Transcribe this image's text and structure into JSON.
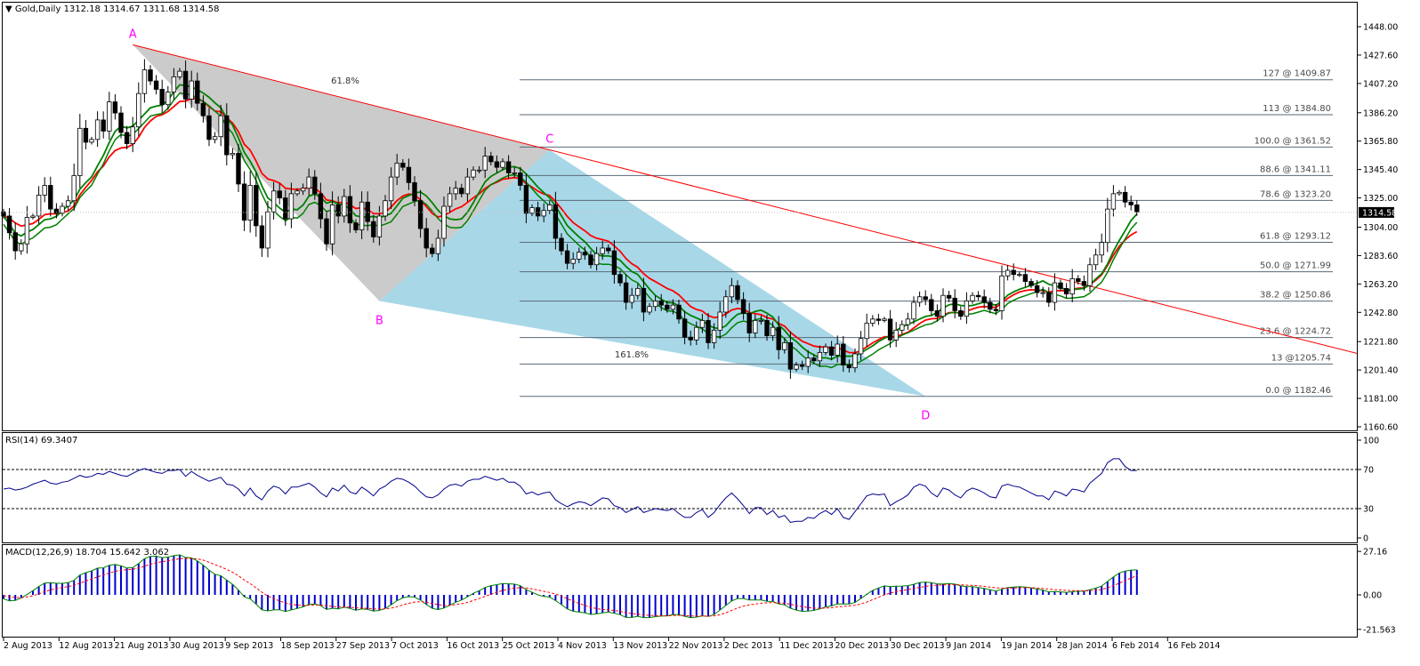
{
  "main_header": {
    "symbol": "Gold,Daily",
    "ohlc": "1312.18 1314.67 1311.68 1314.58"
  },
  "rsi_header": "RSI(14) 69.3407",
  "macd_header": "MACD(12,26,9) 18.704 15.642 3.062",
  "colors": {
    "bull_body": "#ffffff",
    "bear_body": "#000000",
    "ma_red": "#ff0000",
    "ma_green": "#008000",
    "ma_yellow": "#ffff00",
    "trendline": "#ff0000",
    "triangle_gray": "#c8c8c8",
    "triangle_blue": "#a8d8e8",
    "fib_line": "#5a6a78",
    "pattern_label": "#ff00ff",
    "rsi_line": "#00008b",
    "macd_signal": "#ff0000",
    "macd_hist": "#0000cd",
    "macd_line": "#008000"
  },
  "chart_data": [
    {
      "type": "candlestick",
      "title": "Gold,Daily",
      "ylim": [
        1160.6,
        1457.0
      ],
      "y_ticks": [
        "1448.00",
        "1427.60",
        "1407.20",
        "1386.20",
        "1365.80",
        "1345.40",
        "1325.00",
        "1304.00",
        "1283.60",
        "1263.20",
        "1242.80",
        "1221.80",
        "1201.40",
        "1181.00",
        "1160.60"
      ],
      "x_ticks": [
        "2 Aug 2013",
        "12 Aug 2013",
        "21 Aug 2013",
        "30 Aug 2013",
        "9 Sep 2013",
        "18 Sep 2013",
        "27 Sep 2013",
        "7 Oct 2013",
        "16 Oct 2013",
        "25 Oct 2013",
        "4 Nov 2013",
        "13 Nov 2013",
        "22 Nov 2013",
        "2 Dec 2013",
        "11 Dec 2013",
        "20 Dec 2013",
        "30 Dec 2013",
        "9 Jan 2014",
        "19 Jan 2014",
        "28 Jan 2014",
        "6 Feb 2014",
        "16 Feb 2014"
      ],
      "current_price": "1314.58",
      "closes": [
        1312,
        1300,
        1287,
        1292,
        1311,
        1312,
        1327,
        1334,
        1317,
        1314,
        1319,
        1323,
        1341,
        1375,
        1365,
        1367,
        1381,
        1373,
        1394,
        1386,
        1372,
        1364,
        1376,
        1400,
        1417,
        1409,
        1403,
        1392,
        1401,
        1412,
        1416,
        1396,
        1409,
        1393,
        1384,
        1367,
        1369,
        1384,
        1356,
        1357,
        1335,
        1309,
        1334,
        1305,
        1289,
        1315,
        1330,
        1325,
        1310,
        1328,
        1330,
        1332,
        1340,
        1328,
        1310,
        1292,
        1320,
        1312,
        1326,
        1307,
        1302,
        1322,
        1308,
        1297,
        1312,
        1323,
        1340,
        1350,
        1347,
        1336,
        1323,
        1303,
        1289,
        1285,
        1296,
        1319,
        1328,
        1332,
        1328,
        1340,
        1345,
        1345,
        1355,
        1351,
        1347,
        1351,
        1343,
        1343,
        1334,
        1314,
        1318,
        1312,
        1316,
        1320,
        1296,
        1287,
        1278,
        1281,
        1286,
        1284,
        1277,
        1285,
        1289,
        1287,
        1270,
        1264,
        1250,
        1255,
        1260,
        1243,
        1247,
        1251,
        1248,
        1245,
        1248,
        1238,
        1225,
        1223,
        1232,
        1237,
        1221,
        1230,
        1243,
        1254,
        1262,
        1252,
        1242,
        1228,
        1237,
        1237,
        1226,
        1232,
        1216,
        1221,
        1202,
        1205,
        1204,
        1210,
        1208,
        1214,
        1218,
        1212,
        1220,
        1205,
        1203,
        1213,
        1224,
        1235,
        1238,
        1237,
        1238,
        1223,
        1230,
        1234,
        1238,
        1250,
        1254,
        1252,
        1244,
        1240,
        1255,
        1253,
        1244,
        1240,
        1251,
        1255,
        1254,
        1250,
        1245,
        1244,
        1269,
        1273,
        1270,
        1270,
        1265,
        1262,
        1257,
        1257,
        1250,
        1264,
        1260,
        1256,
        1267,
        1265,
        1262,
        1277,
        1284,
        1293,
        1317,
        1328,
        1329,
        1322,
        1320,
        1315
      ]
    },
    {
      "type": "line",
      "title": "RSI(14) 69.3407",
      "ylim": [
        0,
        100
      ],
      "y_ticks": [
        "100",
        "70",
        "30",
        "0"
      ],
      "levels": [
        70,
        30
      ],
      "values": [
        50,
        51,
        49,
        50,
        52,
        55,
        57,
        59,
        56,
        55,
        57,
        58,
        61,
        64,
        62,
        63,
        66,
        65,
        68,
        66,
        64,
        63,
        66,
        69,
        71,
        69,
        67,
        66,
        69,
        69,
        70,
        63,
        68,
        64,
        61,
        58,
        60,
        62,
        55,
        54,
        50,
        43,
        51,
        43,
        39,
        48,
        53,
        51,
        45,
        52,
        52,
        54,
        56,
        52,
        46,
        42,
        51,
        48,
        54,
        47,
        45,
        52,
        48,
        43,
        50,
        53,
        58,
        61,
        60,
        57,
        53,
        47,
        42,
        41,
        44,
        50,
        54,
        55,
        53,
        58,
        60,
        60,
        63,
        61,
        59,
        61,
        57,
        57,
        53,
        45,
        47,
        44,
        46,
        47,
        39,
        35,
        32,
        35,
        37,
        36,
        33,
        37,
        41,
        40,
        33,
        31,
        26,
        29,
        32,
        26,
        28,
        30,
        29,
        28,
        30,
        25,
        21,
        21,
        26,
        29,
        21,
        26,
        34,
        41,
        46,
        40,
        33,
        25,
        31,
        31,
        24,
        28,
        21,
        23,
        16,
        17,
        17,
        21,
        20,
        25,
        28,
        24,
        30,
        21,
        19,
        27,
        35,
        43,
        45,
        44,
        45,
        33,
        37,
        40,
        44,
        52,
        55,
        53,
        46,
        42,
        51,
        49,
        44,
        41,
        48,
        51,
        49,
        46,
        42,
        41,
        53,
        55,
        53,
        52,
        49,
        46,
        43,
        43,
        39,
        48,
        46,
        43,
        50,
        49,
        47,
        56,
        61,
        66,
        77,
        81,
        81,
        73,
        69,
        69
      ]
    },
    {
      "type": "bar",
      "title": "MACD(12,26,9) 18.704 15.642 3.062",
      "ylim": [
        -24.0,
        30.0
      ],
      "y_ticks": [
        "27.16",
        "0.00",
        "-21.563"
      ],
      "series": [
        {
          "values": [
            -2.5,
            -3.8,
            -3.5,
            -2.0,
            0.2,
            2.6,
            5.2,
            7.4,
            7.6,
            7.2,
            7.2,
            7.6,
            9.1,
            12.4,
            13.9,
            15.0,
            16.7,
            16.9,
            18.5,
            19.0,
            18.1,
            16.8,
            17.0,
            19.6,
            22.6,
            24.0,
            24.2,
            23.3,
            23.6,
            24.5,
            25.0,
            23.4,
            23.1,
            21.2,
            18.6,
            15.4,
            12.9,
            12.0,
            9.3,
            6.6,
            3.0,
            -1.2,
            -2.5,
            -5.8,
            -9.4,
            -10.0,
            -9.4,
            -9.3,
            -10.4,
            -9.4,
            -8.5,
            -7.5,
            -6.0,
            -5.7,
            -6.8,
            -9.1,
            -8.4,
            -8.7,
            -7.7,
            -8.5,
            -9.6,
            -8.8,
            -9.1,
            -10.1,
            -9.7,
            -8.5,
            -6.2,
            -3.6,
            -1.9,
            -1.1,
            -1.4,
            -3.3,
            -6.0,
            -8.4,
            -9.2,
            -8.2,
            -6.5,
            -4.6,
            -3.2,
            -1.2,
            1.0,
            2.6,
            4.6,
            5.8,
            6.4,
            7.1,
            6.9,
            6.7,
            5.7,
            3.3,
            1.6,
            -0.0,
            -1.0,
            -1.4,
            -3.6,
            -6.0,
            -8.8,
            -10.2,
            -10.8,
            -11.3,
            -12.2,
            -11.9,
            -11.2,
            -10.7,
            -11.5,
            -12.4,
            -14.1,
            -14.1,
            -13.4,
            -14.2,
            -14.2,
            -13.6,
            -13.3,
            -13.1,
            -12.3,
            -12.4,
            -13.4,
            -14.2,
            -13.9,
            -13.1,
            -13.5,
            -12.3,
            -9.5,
            -6.6,
            -3.8,
            -2.3,
            -2.3,
            -3.2,
            -3.2,
            -3.2,
            -4.0,
            -4.1,
            -5.6,
            -6.3,
            -8.4,
            -9.5,
            -10.3,
            -10.1,
            -9.7,
            -8.8,
            -7.5,
            -6.9,
            -5.6,
            -5.7,
            -5.7,
            -4.7,
            -2.3,
            0.4,
            2.8,
            4.3,
            5.6,
            5.2,
            5.4,
            5.5,
            5.8,
            6.6,
            7.7,
            8.0,
            7.6,
            6.8,
            6.8,
            7.1,
            6.7,
            5.6,
            5.2,
            5.1,
            4.6,
            4.0,
            3.2,
            2.4,
            3.5,
            4.6,
            4.9,
            5.1,
            4.9,
            4.4,
            3.6,
            3.0,
            1.9,
            2.1,
            1.9,
            1.5,
            2.0,
            2.3,
            2.3,
            3.2,
            4.2,
            5.5,
            8.4,
            11.2,
            13.6,
            14.9,
            15.5,
            15.6
          ]
        },
        {
          "values": [
            -0.5,
            -1.1,
            -1.6,
            -1.7,
            -1.3,
            -0.5,
            0.6,
            2.0,
            3.1,
            3.9,
            4.6,
            5.2,
            6.0,
            7.3,
            8.6,
            9.9,
            11.2,
            12.4,
            13.6,
            14.7,
            15.4,
            15.7,
            16.0,
            16.7,
            17.9,
            19.1,
            20.1,
            20.7,
            21.3,
            22.0,
            22.6,
            22.8,
            22.8,
            22.5,
            21.7,
            20.4,
            18.9,
            17.5,
            15.9,
            14.1,
            11.9,
            9.3,
            7.0,
            4.4,
            1.6,
            -0.7,
            -2.4,
            -3.8,
            -5.1,
            -5.9,
            -6.4,
            -6.6,
            -6.5,
            -6.3,
            -6.4,
            -6.9,
            -7.2,
            -7.5,
            -7.5,
            -7.7,
            -8.1,
            -8.2,
            -8.4,
            -8.7,
            -8.9,
            -8.8,
            -8.3,
            -7.4,
            -6.3,
            -5.3,
            -4.5,
            -4.3,
            -4.6,
            -5.4,
            -6.1,
            -6.5,
            -6.5,
            -6.1,
            -5.5,
            -4.7,
            -3.5,
            -2.3,
            -0.9,
            0.4,
            1.6,
            2.7,
            3.6,
            4.2,
            4.5,
            4.3,
            3.8,
            3.0,
            2.2,
            1.5,
            0.5,
            -0.8,
            -2.4,
            -4.0,
            -5.4,
            -6.6,
            -7.7,
            -8.6,
            -9.1,
            -9.4,
            -9.8,
            -10.3,
            -11.1,
            -11.7,
            -12.0,
            -12.5,
            -12.8,
            -13.0,
            -13.0,
            -13.1,
            -12.9,
            -12.8,
            -12.9,
            -13.1,
            -13.3,
            -13.2,
            -13.3,
            -13.1,
            -12.4,
            -11.2,
            -9.7,
            -8.2,
            -7.0,
            -6.3,
            -5.7,
            -5.2,
            -5.0,
            -4.8,
            -5.0,
            -5.3,
            -5.9,
            -6.6,
            -7.4,
            -7.9,
            -8.3,
            -8.4,
            -8.2,
            -8.0,
            -7.5,
            -7.2,
            -6.9,
            -6.5,
            -5.7,
            -4.5,
            -3.0,
            -1.5,
            0.0,
            1.1,
            2.0,
            2.7,
            3.3,
            4.0,
            4.7,
            5.3,
            5.8,
            6.0,
            6.2,
            6.3,
            6.4,
            6.3,
            6.1,
            5.9,
            5.7,
            5.3,
            4.9,
            4.4,
            4.2,
            4.2,
            4.3,
            4.4,
            4.5,
            4.5,
            4.3,
            4.0,
            3.6,
            3.3,
            3.1,
            2.8,
            2.7,
            2.6,
            2.5,
            2.6,
            2.9,
            3.4,
            4.4,
            5.8,
            7.3,
            8.9,
            10.5,
            12.1
          ]
        }
      ]
    }
  ],
  "pattern": {
    "points": [
      {
        "label": "A",
        "x_index": 22,
        "price": 1435.0
      },
      {
        "label": "B",
        "x_index": 64,
        "price": 1251.0
      },
      {
        "label": "C",
        "x_index": 93,
        "price": 1359.5
      },
      {
        "label": "D",
        "x_index": 157,
        "price": 1182.5
      }
    ],
    "ab_ratio_label": "61.8%",
    "cd_ratio_label": "161.8%"
  },
  "fib_levels": [
    {
      "label": "127 @ 1409.87",
      "price": 1409.87
    },
    {
      "label": "113 @ 1384.80",
      "price": 1384.8
    },
    {
      "label": "100.0 @ 1361.52",
      "price": 1361.52
    },
    {
      "label": "88.6 @ 1341.11",
      "price": 1341.11
    },
    {
      "label": "78.6 @ 1323.20",
      "price": 1323.2
    },
    {
      "label": "61.8 @ 1293.12",
      "price": 1293.12
    },
    {
      "label": "50.0 @ 1271.99",
      "price": 1271.99
    },
    {
      "label": "38.2 @ 1250.86",
      "price": 1250.86
    },
    {
      "label": "23.6 @ 1224.72",
      "price": 1224.72
    },
    {
      "label": "13 @1205.74",
      "price": 1205.74
    },
    {
      "label": "0.0 @ 1182.46",
      "price": 1182.46
    }
  ]
}
